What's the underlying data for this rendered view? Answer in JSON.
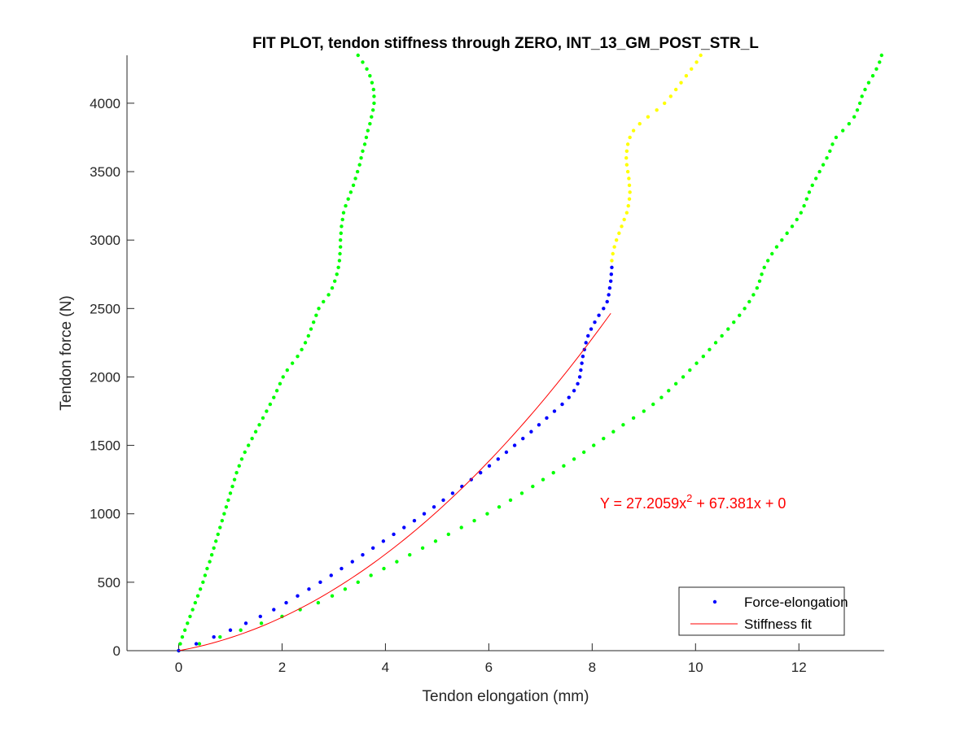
{
  "chart_data": {
    "type": "scatter",
    "title": "FIT PLOT, tendon stiffness through ZERO, INT_13_GM_POST_STR_L",
    "xlabel": "Tendon elongation (mm)",
    "ylabel": "Tendon force (N)",
    "xlim": [
      -1,
      13.65
    ],
    "ylim": [
      0,
      4350
    ],
    "xticks": [
      0,
      2,
      4,
      6,
      8,
      10,
      12
    ],
    "yticks": [
      0,
      500,
      1000,
      1500,
      2000,
      2500,
      3000,
      3500,
      4000
    ],
    "grid": false,
    "legend_position": "bottom-right",
    "annotation": {
      "prefix": "Y = 27.2059x",
      "superscript": "2",
      "suffix": " + 67.381x + 0",
      "x": 8.15,
      "y": 1040,
      "color": "#ff0000"
    },
    "fit": {
      "name": "Stiffness fit",
      "a": 27.2059,
      "b": 67.381,
      "c": 0,
      "x_range": [
        0,
        8.36
      ],
      "color": "#ff0000"
    },
    "series": [
      {
        "name": "Force-elongation",
        "color": "#0000ff",
        "points": [
          [
            0,
            0
          ],
          [
            0.34,
            50
          ],
          [
            0.68,
            100
          ],
          [
            1.0,
            150
          ],
          [
            1.3,
            200
          ],
          [
            1.58,
            250
          ],
          [
            1.84,
            300
          ],
          [
            2.08,
            350
          ],
          [
            2.3,
            400
          ],
          [
            2.52,
            450
          ],
          [
            2.74,
            500
          ],
          [
            2.95,
            550
          ],
          [
            3.15,
            600
          ],
          [
            3.36,
            650
          ],
          [
            3.56,
            700
          ],
          [
            3.76,
            750
          ],
          [
            3.96,
            800
          ],
          [
            4.16,
            850
          ],
          [
            4.36,
            900
          ],
          [
            4.56,
            950
          ],
          [
            4.75,
            1000
          ],
          [
            4.94,
            1050
          ],
          [
            5.12,
            1100
          ],
          [
            5.3,
            1150
          ],
          [
            5.48,
            1200
          ],
          [
            5.66,
            1250
          ],
          [
            5.84,
            1300
          ],
          [
            6.01,
            1350
          ],
          [
            6.18,
            1400
          ],
          [
            6.34,
            1450
          ],
          [
            6.5,
            1500
          ],
          [
            6.66,
            1550
          ],
          [
            6.82,
            1600
          ],
          [
            6.97,
            1650
          ],
          [
            7.12,
            1700
          ],
          [
            7.27,
            1750
          ],
          [
            7.42,
            1800
          ],
          [
            7.55,
            1850
          ],
          [
            7.65,
            1900
          ],
          [
            7.72,
            1950
          ],
          [
            7.76,
            2000
          ],
          [
            7.78,
            2050
          ],
          [
            7.8,
            2100
          ],
          [
            7.82,
            2150
          ],
          [
            7.85,
            2200
          ],
          [
            7.88,
            2250
          ],
          [
            7.92,
            2300
          ],
          [
            7.98,
            2350
          ],
          [
            8.05,
            2400
          ],
          [
            8.13,
            2450
          ],
          [
            8.22,
            2500
          ],
          [
            8.29,
            2550
          ],
          [
            8.32,
            2600
          ],
          [
            8.34,
            2650
          ],
          [
            8.36,
            2700
          ],
          [
            8.37,
            2750
          ],
          [
            8.38,
            2800
          ]
        ]
      },
      {
        "name": "",
        "color": "#ffff00",
        "points": [
          [
            8.38,
            2850
          ],
          [
            8.4,
            2900
          ],
          [
            8.43,
            2950
          ],
          [
            8.47,
            3000
          ],
          [
            8.52,
            3050
          ],
          [
            8.57,
            3100
          ],
          [
            8.62,
            3150
          ],
          [
            8.67,
            3200
          ],
          [
            8.7,
            3250
          ],
          [
            8.72,
            3300
          ],
          [
            8.73,
            3350
          ],
          [
            8.72,
            3400
          ],
          [
            8.71,
            3450
          ],
          [
            8.69,
            3500
          ],
          [
            8.67,
            3550
          ],
          [
            8.66,
            3600
          ],
          [
            8.67,
            3650
          ],
          [
            8.69,
            3700
          ],
          [
            8.73,
            3750
          ],
          [
            8.8,
            3800
          ],
          [
            8.92,
            3850
          ],
          [
            9.08,
            3900
          ],
          [
            9.25,
            3950
          ],
          [
            9.4,
            4000
          ],
          [
            9.52,
            4050
          ],
          [
            9.62,
            4100
          ],
          [
            9.72,
            4150
          ],
          [
            9.82,
            4200
          ],
          [
            9.92,
            4250
          ],
          [
            10.02,
            4300
          ],
          [
            10.1,
            4350
          ]
        ]
      },
      {
        "name": "",
        "color": "#00ff00",
        "points": [
          [
            0,
            0
          ],
          [
            0.03,
            50
          ],
          [
            0.07,
            100
          ],
          [
            0.12,
            150
          ],
          [
            0.17,
            200
          ],
          [
            0.22,
            250
          ],
          [
            0.27,
            300
          ],
          [
            0.32,
            350
          ],
          [
            0.37,
            400
          ],
          [
            0.42,
            450
          ],
          [
            0.47,
            500
          ],
          [
            0.51,
            550
          ],
          [
            0.55,
            600
          ],
          [
            0.6,
            650
          ],
          [
            0.64,
            700
          ],
          [
            0.68,
            750
          ],
          [
            0.72,
            800
          ],
          [
            0.76,
            850
          ],
          [
            0.8,
            900
          ],
          [
            0.84,
            950
          ],
          [
            0.88,
            1000
          ],
          [
            0.92,
            1050
          ],
          [
            0.96,
            1100
          ],
          [
            1.0,
            1150
          ],
          [
            1.04,
            1200
          ],
          [
            1.08,
            1250
          ],
          [
            1.12,
            1300
          ],
          [
            1.17,
            1350
          ],
          [
            1.22,
            1400
          ],
          [
            1.28,
            1450
          ],
          [
            1.35,
            1500
          ],
          [
            1.42,
            1550
          ],
          [
            1.49,
            1600
          ],
          [
            1.56,
            1650
          ],
          [
            1.63,
            1700
          ],
          [
            1.7,
            1750
          ],
          [
            1.77,
            1800
          ],
          [
            1.84,
            1850
          ],
          [
            1.9,
            1900
          ],
          [
            1.96,
            1950
          ],
          [
            2.02,
            2000
          ],
          [
            2.1,
            2050
          ],
          [
            2.2,
            2100
          ],
          [
            2.3,
            2150
          ],
          [
            2.38,
            2200
          ],
          [
            2.45,
            2250
          ],
          [
            2.51,
            2300
          ],
          [
            2.56,
            2350
          ],
          [
            2.61,
            2400
          ],
          [
            2.66,
            2450
          ],
          [
            2.71,
            2500
          ],
          [
            2.8,
            2550
          ],
          [
            2.9,
            2600
          ],
          [
            2.97,
            2650
          ],
          [
            3.02,
            2700
          ],
          [
            3.06,
            2750
          ],
          [
            3.09,
            2800
          ],
          [
            3.11,
            2850
          ],
          [
            3.12,
            2900
          ],
          [
            3.13,
            2950
          ],
          [
            3.13,
            3000
          ],
          [
            3.14,
            3050
          ],
          [
            3.15,
            3100
          ],
          [
            3.17,
            3150
          ],
          [
            3.19,
            3200
          ],
          [
            3.23,
            3250
          ],
          [
            3.28,
            3300
          ],
          [
            3.33,
            3350
          ],
          [
            3.38,
            3400
          ],
          [
            3.42,
            3450
          ],
          [
            3.46,
            3500
          ],
          [
            3.5,
            3550
          ],
          [
            3.53,
            3600
          ],
          [
            3.56,
            3650
          ],
          [
            3.6,
            3700
          ],
          [
            3.63,
            3750
          ],
          [
            3.66,
            3800
          ],
          [
            3.7,
            3850
          ],
          [
            3.73,
            3900
          ],
          [
            3.76,
            3950
          ],
          [
            3.78,
            4000
          ],
          [
            3.78,
            4050
          ],
          [
            3.77,
            4100
          ],
          [
            3.74,
            4150
          ],
          [
            3.7,
            4200
          ],
          [
            3.64,
            4250
          ],
          [
            3.56,
            4300
          ],
          [
            3.47,
            4350
          ]
        ]
      },
      {
        "name": "",
        "color": "#00ff00",
        "points": [
          [
            0,
            0
          ],
          [
            0.4,
            50
          ],
          [
            0.8,
            100
          ],
          [
            1.2,
            150
          ],
          [
            1.6,
            200
          ],
          [
            2.0,
            250
          ],
          [
            2.35,
            300
          ],
          [
            2.7,
            350
          ],
          [
            2.97,
            400
          ],
          [
            3.22,
            450
          ],
          [
            3.47,
            500
          ],
          [
            3.72,
            550
          ],
          [
            3.97,
            600
          ],
          [
            4.22,
            650
          ],
          [
            4.47,
            700
          ],
          [
            4.72,
            750
          ],
          [
            4.97,
            800
          ],
          [
            5.22,
            850
          ],
          [
            5.47,
            900
          ],
          [
            5.72,
            950
          ],
          [
            5.97,
            1000
          ],
          [
            6.2,
            1050
          ],
          [
            6.42,
            1100
          ],
          [
            6.64,
            1150
          ],
          [
            6.85,
            1200
          ],
          [
            7.05,
            1250
          ],
          [
            7.25,
            1300
          ],
          [
            7.45,
            1350
          ],
          [
            7.65,
            1400
          ],
          [
            7.84,
            1450
          ],
          [
            8.03,
            1500
          ],
          [
            8.22,
            1550
          ],
          [
            8.41,
            1600
          ],
          [
            8.6,
            1650
          ],
          [
            8.8,
            1700
          ],
          [
            9.0,
            1750
          ],
          [
            9.18,
            1800
          ],
          [
            9.34,
            1850
          ],
          [
            9.48,
            1900
          ],
          [
            9.62,
            1950
          ],
          [
            9.76,
            2000
          ],
          [
            9.89,
            2050
          ],
          [
            10.02,
            2100
          ],
          [
            10.15,
            2150
          ],
          [
            10.27,
            2200
          ],
          [
            10.39,
            2250
          ],
          [
            10.51,
            2300
          ],
          [
            10.63,
            2350
          ],
          [
            10.74,
            2400
          ],
          [
            10.85,
            2450
          ],
          [
            10.95,
            2500
          ],
          [
            11.04,
            2550
          ],
          [
            11.12,
            2600
          ],
          [
            11.19,
            2650
          ],
          [
            11.24,
            2700
          ],
          [
            11.28,
            2750
          ],
          [
            11.33,
            2800
          ],
          [
            11.4,
            2850
          ],
          [
            11.48,
            2900
          ],
          [
            11.57,
            2950
          ],
          [
            11.67,
            3000
          ],
          [
            11.77,
            3050
          ],
          [
            11.87,
            3100
          ],
          [
            11.96,
            3150
          ],
          [
            12.04,
            3200
          ],
          [
            12.1,
            3250
          ],
          [
            12.15,
            3300
          ],
          [
            12.2,
            3350
          ],
          [
            12.26,
            3400
          ],
          [
            12.33,
            3450
          ],
          [
            12.4,
            3500
          ],
          [
            12.47,
            3550
          ],
          [
            12.54,
            3600
          ],
          [
            12.6,
            3650
          ],
          [
            12.65,
            3700
          ],
          [
            12.72,
            3750
          ],
          [
            12.85,
            3800
          ],
          [
            12.97,
            3850
          ],
          [
            13.07,
            3900
          ],
          [
            13.13,
            3950
          ],
          [
            13.18,
            4000
          ],
          [
            13.22,
            4050
          ],
          [
            13.28,
            4100
          ],
          [
            13.35,
            4150
          ],
          [
            13.43,
            4200
          ],
          [
            13.5,
            4250
          ],
          [
            13.56,
            4300
          ],
          [
            13.6,
            4350
          ]
        ]
      }
    ],
    "legend": [
      {
        "label": "Force-elongation",
        "kind": "marker",
        "color": "#0000ff"
      },
      {
        "label": "Stiffness fit",
        "kind": "line",
        "color": "#ff0000"
      }
    ]
  }
}
